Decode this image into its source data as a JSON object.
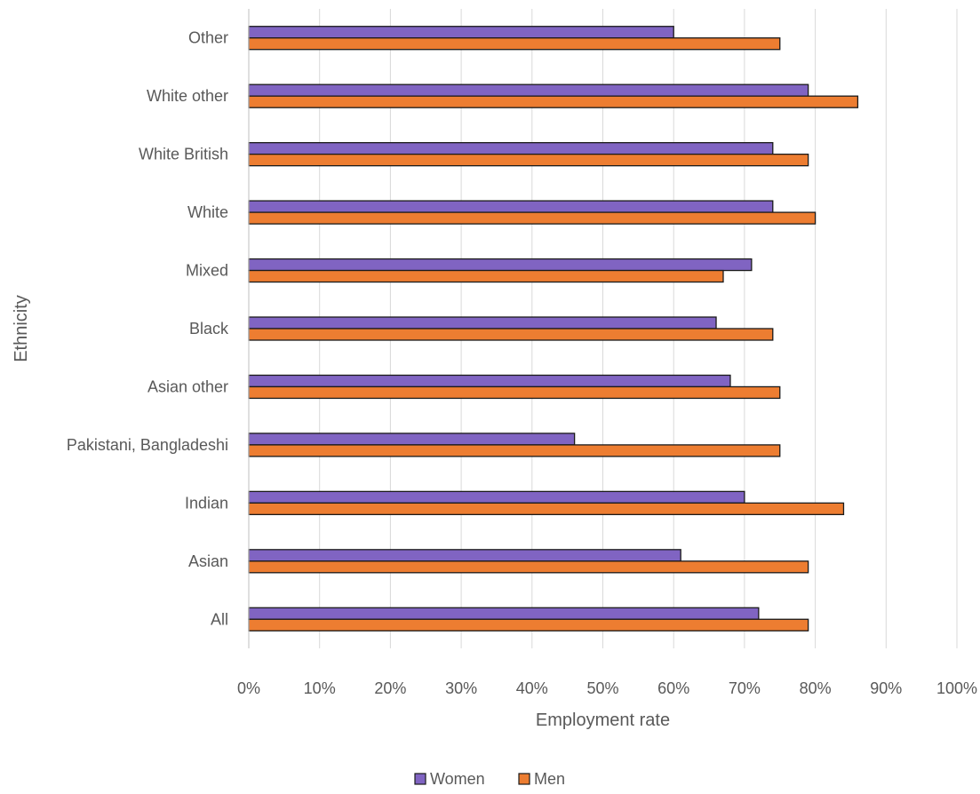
{
  "chart_data": {
    "type": "bar",
    "orientation": "horizontal",
    "xlabel": "Employment rate",
    "ylabel": "Ethnicity",
    "xlim": [
      0,
      100
    ],
    "x_ticks": [
      "0%",
      "10%",
      "20%",
      "30%",
      "40%",
      "50%",
      "60%",
      "70%",
      "80%",
      "90%",
      "100%"
    ],
    "categories": [
      "All",
      "Asian",
      "Indian",
      "Pakistani, Bangladeshi",
      "Asian other",
      "Black",
      "Mixed",
      "White",
      "White British",
      "White other",
      "Other"
    ],
    "series": [
      {
        "name": "Women",
        "color": "#8064c2",
        "values": [
          72,
          61,
          70,
          46,
          68,
          66,
          71,
          74,
          74,
          79,
          60
        ]
      },
      {
        "name": "Men",
        "color": "#ed7d31",
        "values": [
          79,
          79,
          84,
          75,
          75,
          74,
          67,
          80,
          79,
          86,
          75
        ]
      }
    ],
    "grid": "vertical",
    "legend_position": "bottom",
    "category_order": "bottom-to-top"
  }
}
